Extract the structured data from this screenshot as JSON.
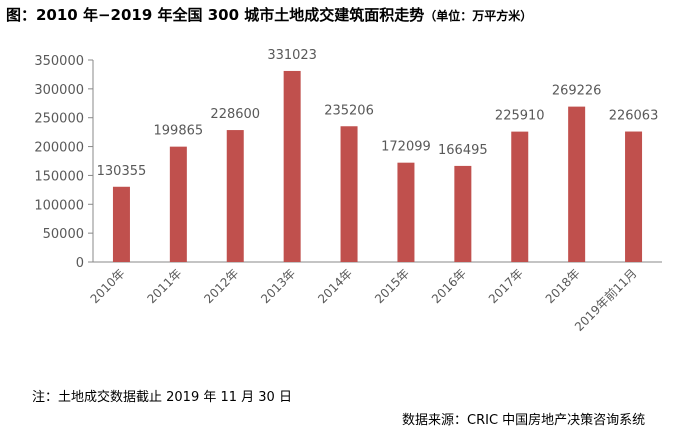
{
  "title": "图：2010 年−2019 年全国 300 城市土地成交建筑面积走势",
  "unit": "（单位：万平方米）",
  "note": "注：土地成交数据截止 2019 年 11 月 30 日",
  "source": "数据来源：CRIC 中国房地产决策咨询系统",
  "colors": {
    "bar": "#C0504D",
    "axis": "#888888",
    "text": "#595959"
  },
  "chart_data": {
    "type": "bar",
    "categories": [
      "2010年",
      "2011年",
      "2012年",
      "2013年",
      "2014年",
      "2015年",
      "2016年",
      "2017年",
      "2018年",
      "2019年前11月"
    ],
    "values": [
      130355,
      199865,
      228600,
      331023,
      235206,
      172099,
      166495,
      225910,
      269226,
      226063
    ],
    "title": "图：2010 年−2019 年全国 300 城市土地成交建筑面积走势",
    "ylim": [
      0,
      350000
    ],
    "yticks": [
      0,
      50000,
      100000,
      150000,
      200000,
      250000,
      300000,
      350000
    ],
    "grid": false,
    "legend": "none",
    "data_labels": true
  }
}
